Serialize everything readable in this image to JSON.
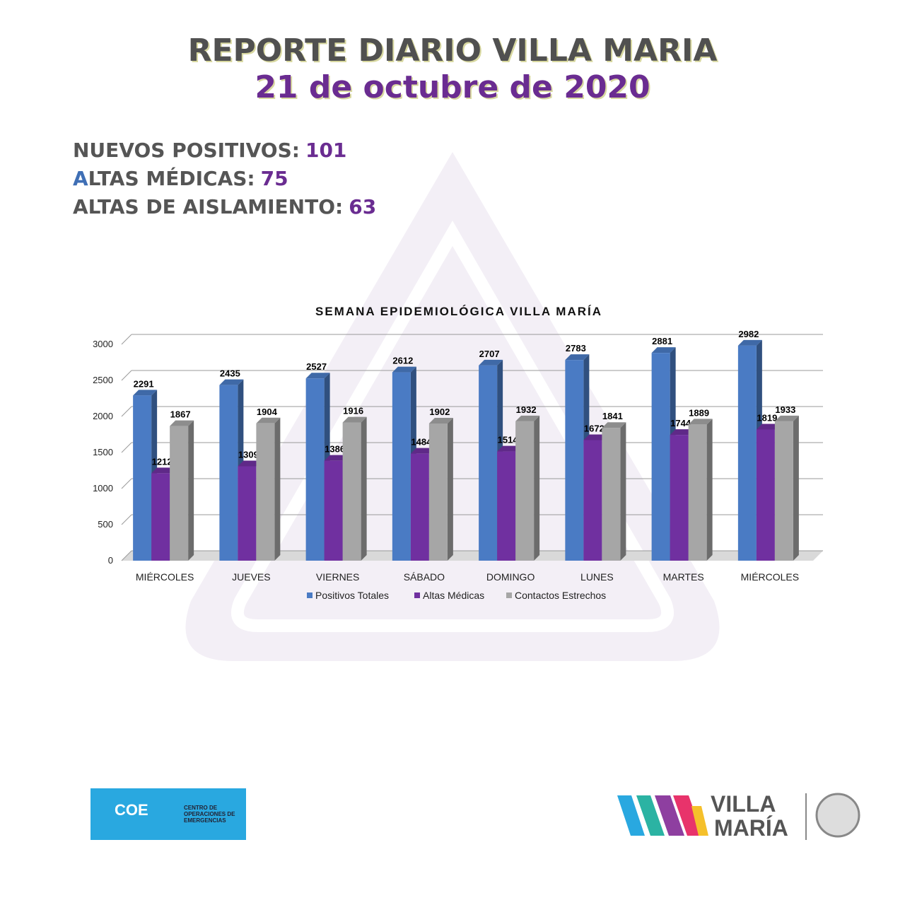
{
  "header": {
    "title": "REPORTE DIARIO VILLA MARIA",
    "date": "21 de octubre de 2020"
  },
  "stats": [
    {
      "label": "NUEVOS POSITIVOS:",
      "value": 101
    },
    {
      "label": "ALTAS MÉDICAS:",
      "value": 75
    },
    {
      "label": "ALTAS DE AISLAMIENTO:",
      "value": 63
    }
  ],
  "chart_data": {
    "type": "bar",
    "title": "SEMANA EPIDEMIOLÓGICA VILLA MARÍA",
    "categories": [
      "MIÉRCOLES",
      "JUEVES",
      "VIERNES",
      "SÁBADO",
      "DOMINGO",
      "LUNES",
      "MARTES",
      "MIÉRCOLES"
    ],
    "series": [
      {
        "name": "Positivos Totales",
        "color": "#4a7bc4",
        "values": [
          2291,
          2435,
          2527,
          2612,
          2707,
          2783,
          2881,
          2982
        ]
      },
      {
        "name": "Altas Médicas",
        "color": "#7030a0",
        "values": [
          1212,
          1309,
          1386,
          1484,
          1514,
          1672,
          1744,
          1819
        ]
      },
      {
        "name": "Contactos Estrechos",
        "color": "#a6a6a6",
        "values": [
          1867,
          1904,
          1916,
          1902,
          1932,
          1841,
          1889,
          1933
        ]
      }
    ],
    "ylim": [
      0,
      3000
    ],
    "yticks": [
      0,
      500,
      1000,
      1500,
      2000,
      2500,
      3000
    ],
    "grid": true,
    "legend": "bottom"
  },
  "logos": {
    "coe": "COE",
    "coe_text": [
      "CENTRO DE",
      "OPERACIONES DE",
      "EMERGENCIAS"
    ],
    "brand": [
      "VILLA",
      "MARÍA"
    ]
  }
}
